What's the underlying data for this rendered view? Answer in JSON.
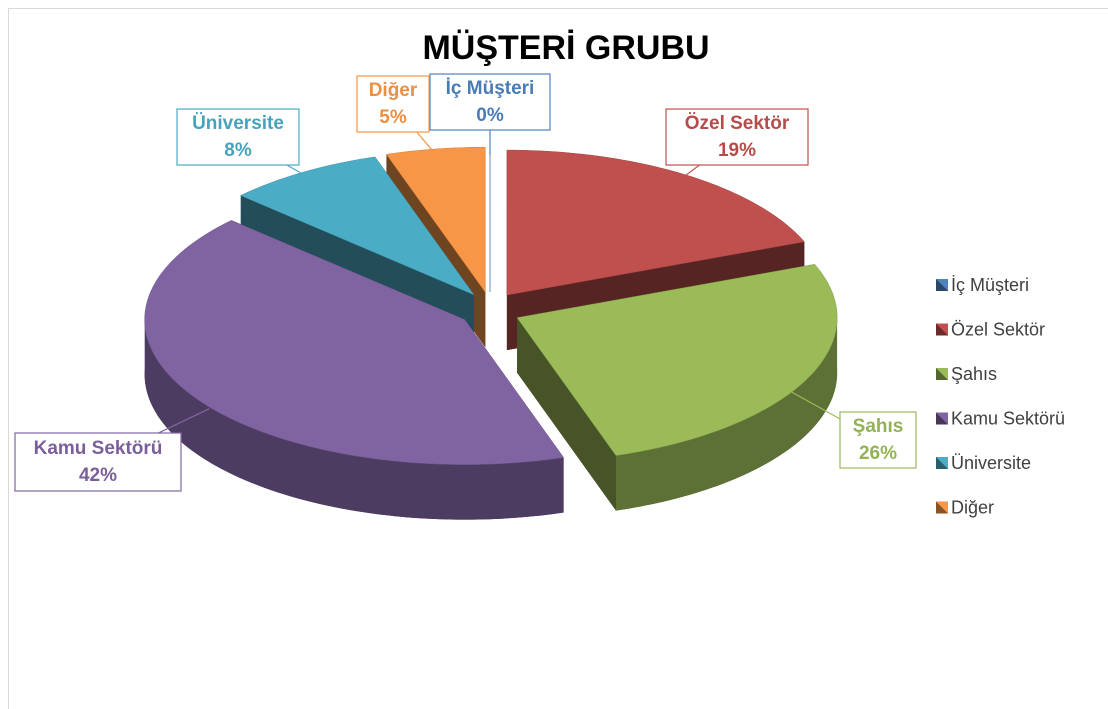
{
  "chart_data": {
    "type": "pie",
    "title": "MÜŞTERİ GRUBU",
    "categories": [
      "İç Müşteri",
      "Özel Sektör",
      "Şahıs",
      "Kamu Sektörü",
      "Üniversite",
      "Diğer"
    ],
    "values": [
      0,
      19,
      26,
      42,
      8,
      5
    ],
    "value_labels": [
      "0%",
      "19%",
      "26%",
      "42%",
      "8%",
      "5%"
    ],
    "colors": [
      "#4f81bd",
      "#c0504d",
      "#9bbb59",
      "#8064a2",
      "#4bacc6",
      "#f79646"
    ],
    "legend": "right"
  }
}
